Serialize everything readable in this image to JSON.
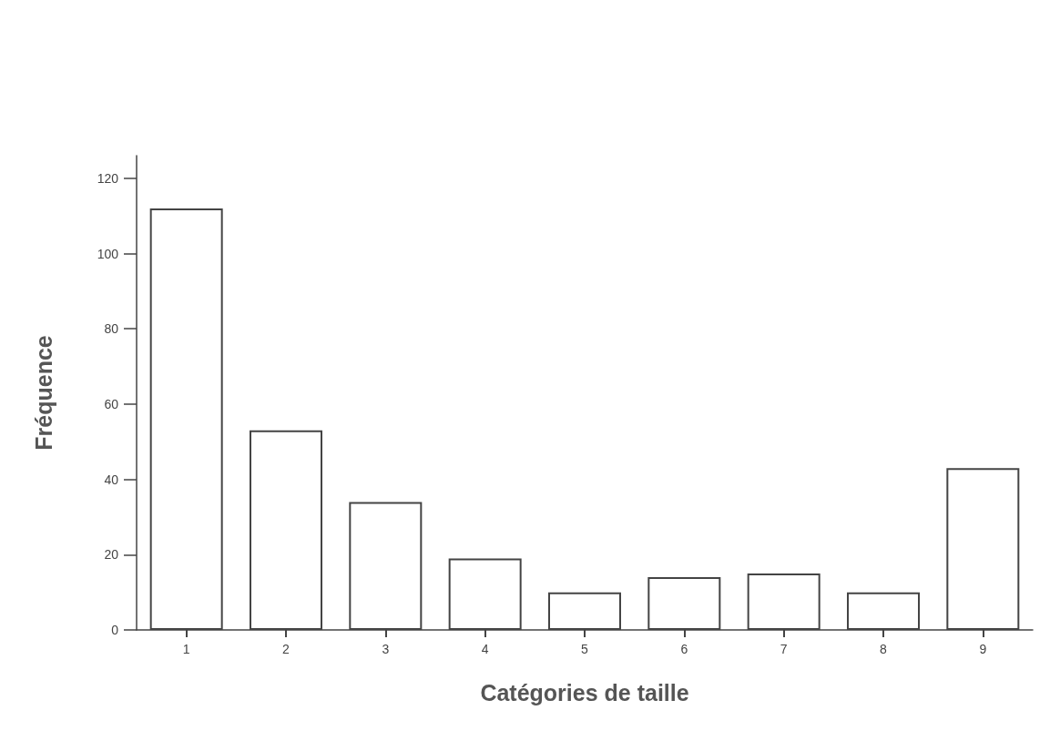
{
  "chart_data": {
    "type": "bar",
    "xlabel": "Catégories de taille",
    "ylabel": "Fréquence",
    "categories": [
      "1",
      "2",
      "3",
      "4",
      "5",
      "6",
      "7",
      "8",
      "9"
    ],
    "values": [
      112,
      53,
      34,
      19,
      10,
      14,
      15,
      10,
      43
    ],
    "color": "#ffffff",
    "ylim": [
      0,
      126
    ],
    "yticks": [
      0,
      20,
      40,
      60,
      80,
      100,
      120
    ],
    "grid": false
  }
}
